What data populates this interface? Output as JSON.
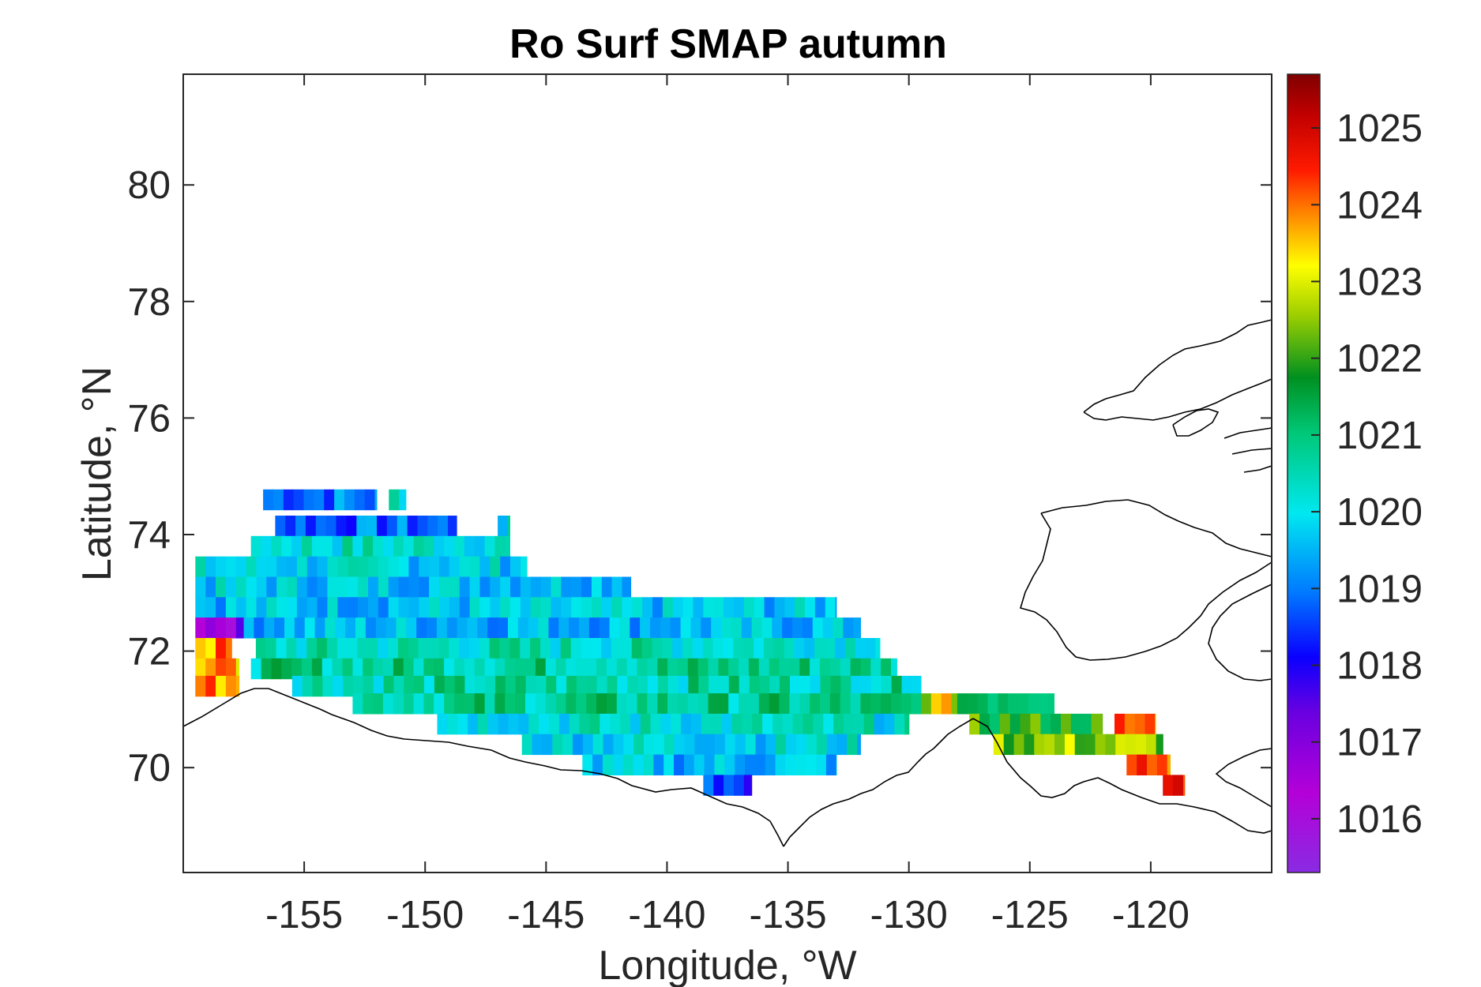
{
  "chart_data": {
    "type": "heatmap",
    "title": "Ro Surf SMAP autumn",
    "xlabel": "Longitude, °W",
    "ylabel": "Latitude, °N",
    "xlim": [
      -160,
      -115
    ],
    "ylim": [
      68.2,
      81.9
    ],
    "xticks": [
      -155,
      -150,
      -145,
      -140,
      -135,
      -130,
      -125,
      -120
    ],
    "xticklabels": [
      "-155",
      "-150",
      "-145",
      "-140",
      "-135",
      "-130",
      "-125",
      "-120"
    ],
    "yticks": [
      70,
      72,
      74,
      76,
      78,
      80
    ],
    "yticklabels": [
      "70",
      "72",
      "74",
      "76",
      "78",
      "80"
    ],
    "colorbar": {
      "range": [
        1015.3,
        1025.7
      ],
      "ticks": [
        1016,
        1017,
        1018,
        1019,
        1020,
        1021,
        1022,
        1023,
        1024,
        1025
      ],
      "ticklabels": [
        "1016",
        "1017",
        "1018",
        "1019",
        "1020",
        "1021",
        "1022",
        "1023",
        "1024",
        "1025"
      ],
      "colormap": "jet-like (purple–blue–cyan–green–yellow–red–dark red)"
    },
    "grid": false,
    "data_rows": [
      {
        "lat": 74.6,
        "segments": [
          [
            -156.7,
            -152.0,
            1019.0
          ],
          [
            -151.5,
            -150.8,
            1020.5
          ]
        ]
      },
      {
        "lat": 74.15,
        "segments": [
          [
            -156.2,
            -148.7,
            1018.8
          ],
          [
            -147.0,
            -146.5,
            1020.0
          ]
        ]
      },
      {
        "lat": 73.8,
        "segments": [
          [
            -157.2,
            -146.5,
            1020.3
          ]
        ]
      },
      {
        "lat": 73.45,
        "segments": [
          [
            -159.5,
            -145.8,
            1019.9
          ]
        ]
      },
      {
        "lat": 73.1,
        "segments": [
          [
            -159.5,
            -141.5,
            1019.8
          ]
        ]
      },
      {
        "lat": 72.75,
        "segments": [
          [
            -159.5,
            -133.0,
            1019.7
          ]
        ]
      },
      {
        "lat": 72.4,
        "segments": [
          [
            -159.5,
            -157.5,
            1016.8
          ],
          [
            -157.5,
            -132.0,
            1019.6
          ]
        ]
      },
      {
        "lat": 72.05,
        "segments": [
          [
            -159.5,
            -158.0,
            1023.8
          ],
          [
            -157.0,
            -131.2,
            1020.4
          ]
        ]
      },
      {
        "lat": 71.7,
        "segments": [
          [
            -159.5,
            -157.7,
            1023.5
          ],
          [
            -157.2,
            -130.5,
            1020.8
          ]
        ]
      },
      {
        "lat": 71.4,
        "segments": [
          [
            -159.5,
            -157.7,
            1024.0
          ],
          [
            -155.5,
            -129.5,
            1020.6
          ]
        ]
      },
      {
        "lat": 71.1,
        "segments": [
          [
            -153.0,
            -129.5,
            1020.8
          ],
          [
            -129.5,
            -128.0,
            1023.0
          ],
          [
            -128.0,
            -124.0,
            1021.5
          ]
        ]
      },
      {
        "lat": 70.75,
        "segments": [
          [
            -149.5,
            -130.0,
            1020.2
          ],
          [
            -127.5,
            -122.0,
            1021.8
          ],
          [
            -121.5,
            -119.8,
            1024.0
          ]
        ]
      },
      {
        "lat": 70.4,
        "segments": [
          [
            -146.0,
            -132.0,
            1020.0
          ],
          [
            -126.5,
            -119.5,
            1022.5
          ]
        ]
      },
      {
        "lat": 70.05,
        "segments": [
          [
            -143.5,
            -133.0,
            1019.6
          ],
          [
            -121.0,
            -119.2,
            1024.2
          ]
        ]
      },
      {
        "lat": 69.7,
        "segments": [
          [
            -138.5,
            -136.5,
            1018.5
          ],
          [
            -119.5,
            -118.6,
            1024.3
          ]
        ]
      }
    ]
  }
}
